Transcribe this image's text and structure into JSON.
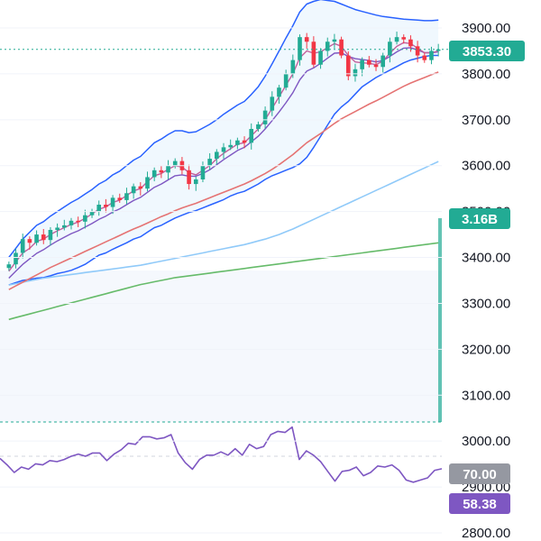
{
  "chart_data": {
    "type": "candlestick",
    "y_axis": {
      "ticks": [
        "3900.00",
        "3800.00",
        "3700.00",
        "3600.00",
        "3500.00",
        "3400.00",
        "3300.00",
        "3200.00",
        "3100.00",
        "3000.00",
        "2900.00",
        "2800.00"
      ],
      "range": [
        2800,
        3950
      ]
    },
    "last_price": {
      "label": "3853.30",
      "value": 3853.3,
      "color": "#22ab94"
    },
    "volume_badge": {
      "label": "3.16B",
      "color": "#22ab94"
    },
    "rsi": {
      "upper_label": "70.00",
      "current_label": "58.38",
      "upper_color": "#9598a1",
      "current_color": "#7e57c2",
      "range": [
        0,
        100
      ],
      "values": [
        68,
        62,
        55,
        60,
        58,
        63,
        62,
        66,
        65,
        67,
        70,
        72,
        70,
        73,
        73,
        66,
        72,
        76,
        82,
        81,
        88,
        88,
        86,
        87,
        90,
        73,
        64,
        58,
        67,
        71,
        71,
        74,
        71,
        77,
        71,
        81,
        77,
        79,
        90,
        93,
        92,
        97,
        67,
        75,
        71,
        65,
        56,
        47,
        56,
        57,
        60,
        52,
        55,
        61,
        60,
        62,
        57,
        48,
        46,
        48,
        50,
        57,
        58.38
      ]
    },
    "series": {
      "close": [
        3385,
        3410,
        3440,
        3432,
        3450,
        3438,
        3460,
        3465,
        3470,
        3480,
        3478,
        3492,
        3500,
        3515,
        3510,
        3530,
        3525,
        3540,
        3555,
        3550,
        3575,
        3590,
        3585,
        3600,
        3610,
        3590,
        3560,
        3570,
        3600,
        3615,
        3630,
        3640,
        3645,
        3655,
        3650,
        3680,
        3690,
        3720,
        3750,
        3770,
        3800,
        3830,
        3880,
        3870,
        3820,
        3850,
        3870,
        3875,
        3840,
        3795,
        3810,
        3830,
        3820,
        3815,
        3840,
        3870,
        3880,
        3875,
        3860,
        3840,
        3830,
        3850,
        3853.3
      ],
      "ma_fast": [
        3370,
        3390,
        3410,
        3420,
        3435,
        3440,
        3450,
        3458,
        3465,
        3472,
        3477,
        3485,
        3495,
        3505,
        3510,
        3520,
        3525,
        3535,
        3545,
        3550,
        3565,
        3578,
        3583,
        3592,
        3600,
        3597,
        3585,
        3580,
        3590,
        3600,
        3615,
        3627,
        3637,
        3647,
        3650,
        3665,
        3680,
        3700,
        3725,
        3750,
        3775,
        3800,
        3835,
        3850,
        3845,
        3848,
        3857,
        3866,
        3860,
        3840,
        3826,
        3824,
        3823,
        3820,
        3828,
        3845,
        3860,
        3868,
        3866,
        3856,
        3846,
        3846,
        3850
      ],
      "ma_mid": [
        3355,
        3370,
        3385,
        3397,
        3409,
        3417,
        3427,
        3436,
        3444,
        3452,
        3458,
        3466,
        3474,
        3483,
        3490,
        3499,
        3506,
        3515,
        3524,
        3531,
        3542,
        3553,
        3560,
        3569,
        3578,
        3580,
        3577,
        3577,
        3583,
        3591,
        3602,
        3613,
        3623,
        3633,
        3640,
        3652,
        3664,
        3680,
        3698,
        3717,
        3737,
        3759,
        3787,
        3806,
        3813,
        3823,
        3834,
        3845,
        3846,
        3838,
        3833,
        3831,
        3829,
        3826,
        3829,
        3838,
        3848,
        3856,
        3857,
        3852,
        3846,
        3846,
        3848
      ],
      "ma_50": [
        3330,
        3338,
        3346,
        3354,
        3362,
        3370,
        3378,
        3385,
        3392,
        3399,
        3406,
        3413,
        3420,
        3427,
        3434,
        3441,
        3448,
        3455,
        3462,
        3468,
        3475,
        3482,
        3489,
        3495,
        3502,
        3508,
        3513,
        3518,
        3524,
        3530,
        3536,
        3542,
        3548,
        3554,
        3560,
        3567,
        3575,
        3583,
        3592,
        3602,
        3613,
        3624,
        3637,
        3650,
        3660,
        3670,
        3681,
        3692,
        3702,
        3710,
        3718,
        3726,
        3734,
        3741,
        3749,
        3757,
        3765,
        3773,
        3780,
        3786,
        3792,
        3798,
        3804
      ],
      "ma_100": [
        3340,
        3343,
        3346,
        3349,
        3352,
        3355,
        3357,
        3359,
        3361,
        3363,
        3365,
        3367,
        3369,
        3371,
        3373,
        3375,
        3377,
        3379,
        3381,
        3383,
        3386,
        3389,
        3392,
        3395,
        3398,
        3401,
        3404,
        3407,
        3410,
        3413,
        3416,
        3419,
        3422,
        3425,
        3428,
        3432,
        3436,
        3440,
        3445,
        3450,
        3456,
        3462,
        3469,
        3476,
        3483,
        3490,
        3497,
        3504,
        3511,
        3518,
        3525,
        3532,
        3539,
        3546,
        3553,
        3560,
        3567,
        3574,
        3581,
        3588,
        3595,
        3602,
        3609
      ],
      "ma_200": [
        3265,
        3269,
        3273,
        3277,
        3281,
        3285,
        3289,
        3293,
        3297,
        3301,
        3305,
        3309,
        3313,
        3317,
        3321,
        3325,
        3329,
        3333,
        3337,
        3341,
        3344,
        3347,
        3350,
        3353,
        3356,
        3358,
        3360,
        3362,
        3364,
        3366,
        3368,
        3370,
        3372,
        3374,
        3376,
        3378,
        3380,
        3382,
        3384,
        3386,
        3388,
        3390,
        3392,
        3394,
        3396,
        3398,
        3400,
        3402,
        3404,
        3406,
        3408,
        3410,
        3412,
        3414,
        3416,
        3418,
        3420,
        3422,
        3424,
        3426,
        3428,
        3430,
        3432
      ],
      "bb_upper": [
        3400,
        3420,
        3440,
        3455,
        3470,
        3478,
        3490,
        3500,
        3510,
        3520,
        3528,
        3538,
        3548,
        3560,
        3568,
        3580,
        3588,
        3600,
        3612,
        3620,
        3635,
        3650,
        3658,
        3668,
        3676,
        3676,
        3672,
        3674,
        3682,
        3690,
        3700,
        3712,
        3722,
        3732,
        3740,
        3755,
        3772,
        3795,
        3822,
        3850,
        3878,
        3905,
        3935,
        3952,
        3958,
        3962,
        3960,
        3958,
        3952,
        3946,
        3940,
        3936,
        3932,
        3928,
        3925,
        3923,
        3921,
        3919,
        3918,
        3917,
        3916,
        3916,
        3917
      ],
      "bb_lower": [
        3340,
        3345,
        3350,
        3352,
        3355,
        3356,
        3360,
        3365,
        3368,
        3372,
        3378,
        3385,
        3395,
        3405,
        3410,
        3418,
        3425,
        3432,
        3440,
        3445,
        3455,
        3465,
        3470,
        3478,
        3486,
        3492,
        3498,
        3502,
        3508,
        3514,
        3520,
        3526,
        3534,
        3540,
        3544,
        3552,
        3560,
        3570,
        3578,
        3584,
        3590,
        3596,
        3604,
        3618,
        3640,
        3664,
        3688,
        3712,
        3728,
        3740,
        3756,
        3772,
        3782,
        3792,
        3800,
        3808,
        3816,
        3824,
        3830,
        3834,
        3838,
        3840,
        3840
      ]
    },
    "colors": {
      "up": "#22ab94",
      "down": "#f23645",
      "ma_fast": "#c3609c",
      "ma_mid": "#7e57c2",
      "ma_50": "#e57373",
      "ma_100": "#90caf9",
      "ma_200": "#66bb6a",
      "bands": "#2962ff",
      "rsi_line": "#7e57c2",
      "volume": "#22ab94",
      "grid": "#f0f3fa"
    }
  }
}
